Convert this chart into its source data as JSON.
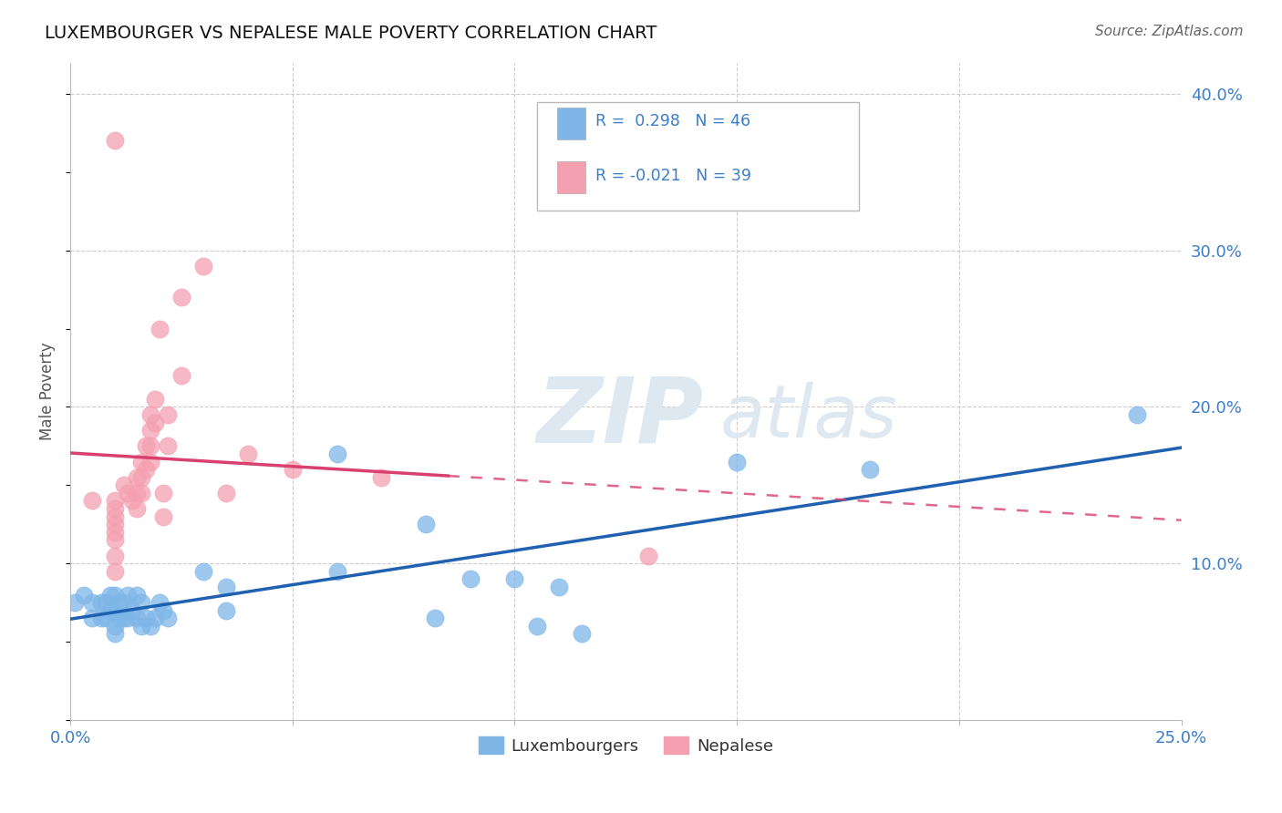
{
  "title": "LUXEMBOURGER VS NEPALESE MALE POVERTY CORRELATION CHART",
  "source": "Source: ZipAtlas.com",
  "ylabel": "Male Poverty",
  "xlim": [
    0.0,
    0.25
  ],
  "ylim": [
    0.0,
    0.42
  ],
  "grid_color": "#cccccc",
  "background_color": "#ffffff",
  "lux_color": "#7eb6e8",
  "nep_color": "#f4a0b0",
  "lux_line_color": "#2060b0",
  "nep_line_color": "#d84070",
  "lux_R": 0.298,
  "lux_N": 46,
  "nep_R": -0.021,
  "nep_N": 39,
  "lux_x": [
    0.001,
    0.003,
    0.005,
    0.005,
    0.007,
    0.007,
    0.008,
    0.008,
    0.009,
    0.009,
    0.01,
    0.01,
    0.01,
    0.01,
    0.011,
    0.011,
    0.012,
    0.012,
    0.013,
    0.013,
    0.014,
    0.015,
    0.015,
    0.016,
    0.016,
    0.017,
    0.018,
    0.019,
    0.02,
    0.021,
    0.022,
    0.03,
    0.035,
    0.035,
    0.06,
    0.06,
    0.08,
    0.082,
    0.09,
    0.1,
    0.105,
    0.11,
    0.115,
    0.15,
    0.18,
    0.24
  ],
  "lux_y": [
    0.075,
    0.08,
    0.075,
    0.065,
    0.075,
    0.065,
    0.075,
    0.065,
    0.08,
    0.07,
    0.08,
    0.07,
    0.06,
    0.055,
    0.075,
    0.065,
    0.075,
    0.065,
    0.08,
    0.065,
    0.07,
    0.08,
    0.065,
    0.075,
    0.06,
    0.065,
    0.06,
    0.065,
    0.075,
    0.07,
    0.065,
    0.095,
    0.085,
    0.07,
    0.17,
    0.095,
    0.125,
    0.065,
    0.09,
    0.09,
    0.06,
    0.085,
    0.055,
    0.165,
    0.16,
    0.195
  ],
  "nep_x": [
    0.005,
    0.01,
    0.01,
    0.01,
    0.01,
    0.01,
    0.01,
    0.01,
    0.01,
    0.012,
    0.013,
    0.014,
    0.015,
    0.015,
    0.015,
    0.016,
    0.016,
    0.016,
    0.017,
    0.017,
    0.018,
    0.018,
    0.018,
    0.018,
    0.019,
    0.019,
    0.02,
    0.021,
    0.021,
    0.022,
    0.022,
    0.025,
    0.025,
    0.03,
    0.035,
    0.04,
    0.05,
    0.07,
    0.13
  ],
  "nep_y": [
    0.14,
    0.14,
    0.135,
    0.13,
    0.125,
    0.12,
    0.115,
    0.105,
    0.095,
    0.15,
    0.145,
    0.14,
    0.155,
    0.145,
    0.135,
    0.165,
    0.155,
    0.145,
    0.175,
    0.16,
    0.195,
    0.185,
    0.175,
    0.165,
    0.205,
    0.19,
    0.25,
    0.145,
    0.13,
    0.195,
    0.175,
    0.27,
    0.22,
    0.29,
    0.145,
    0.17,
    0.16,
    0.155,
    0.105
  ],
  "nep_outlier_x": [
    0.01
  ],
  "nep_outlier_y": [
    0.37
  ],
  "legend_lux_label": "Luxembourgers",
  "legend_nep_label": "Nepalese",
  "watermark_zip": "ZIP",
  "watermark_atlas": "atlas"
}
